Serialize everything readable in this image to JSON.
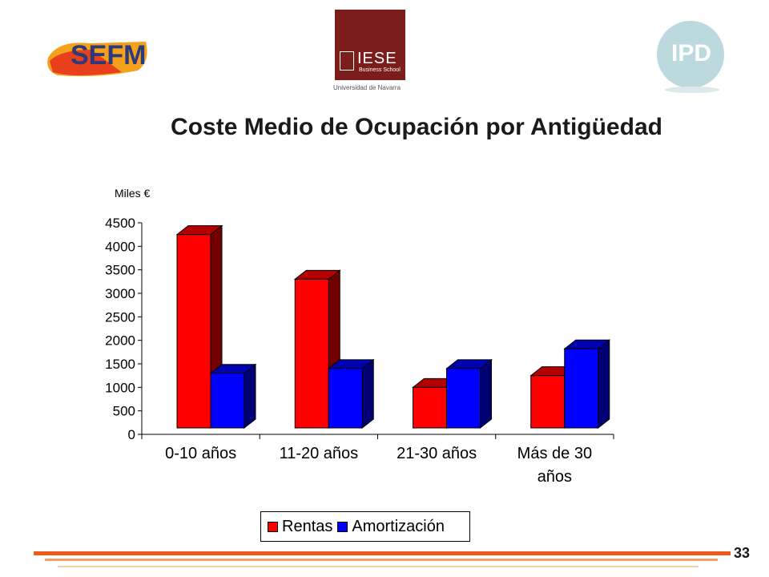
{
  "logos": {
    "sefm": "SEFM",
    "iese": "IESE",
    "iese_sub": "Business School",
    "iese_univ": "Universidad de Navarra",
    "ipd": "IPD"
  },
  "title": "Coste Medio de Ocupación por Antigüedad",
  "page_number": "33",
  "colors": {
    "rentas": "#ff0000",
    "amortizacion": "#0000ff",
    "footer_orange": "#f05a1a"
  },
  "chart_data": {
    "type": "bar",
    "style": "3d-clustered",
    "ylabel": "Miles €",
    "ylim": [
      0,
      4500
    ],
    "yticks": [
      "0",
      "500",
      "1000",
      "1500",
      "2000",
      "2500",
      "3000",
      "3500",
      "4000",
      "4500"
    ],
    "categories": [
      [
        "0-10 años"
      ],
      [
        "11-20 años"
      ],
      [
        "21-30 años"
      ],
      [
        "Más de 30",
        "años"
      ]
    ],
    "series": [
      {
        "name": "Rentas",
        "color": "#ff0000",
        "values": [
          4250,
          3300,
          1000,
          1250
        ]
      },
      {
        "name": "Amortización",
        "color": "#0000ff",
        "values": [
          1300,
          1400,
          1400,
          1820
        ]
      }
    ],
    "legend": "bottom-center"
  }
}
